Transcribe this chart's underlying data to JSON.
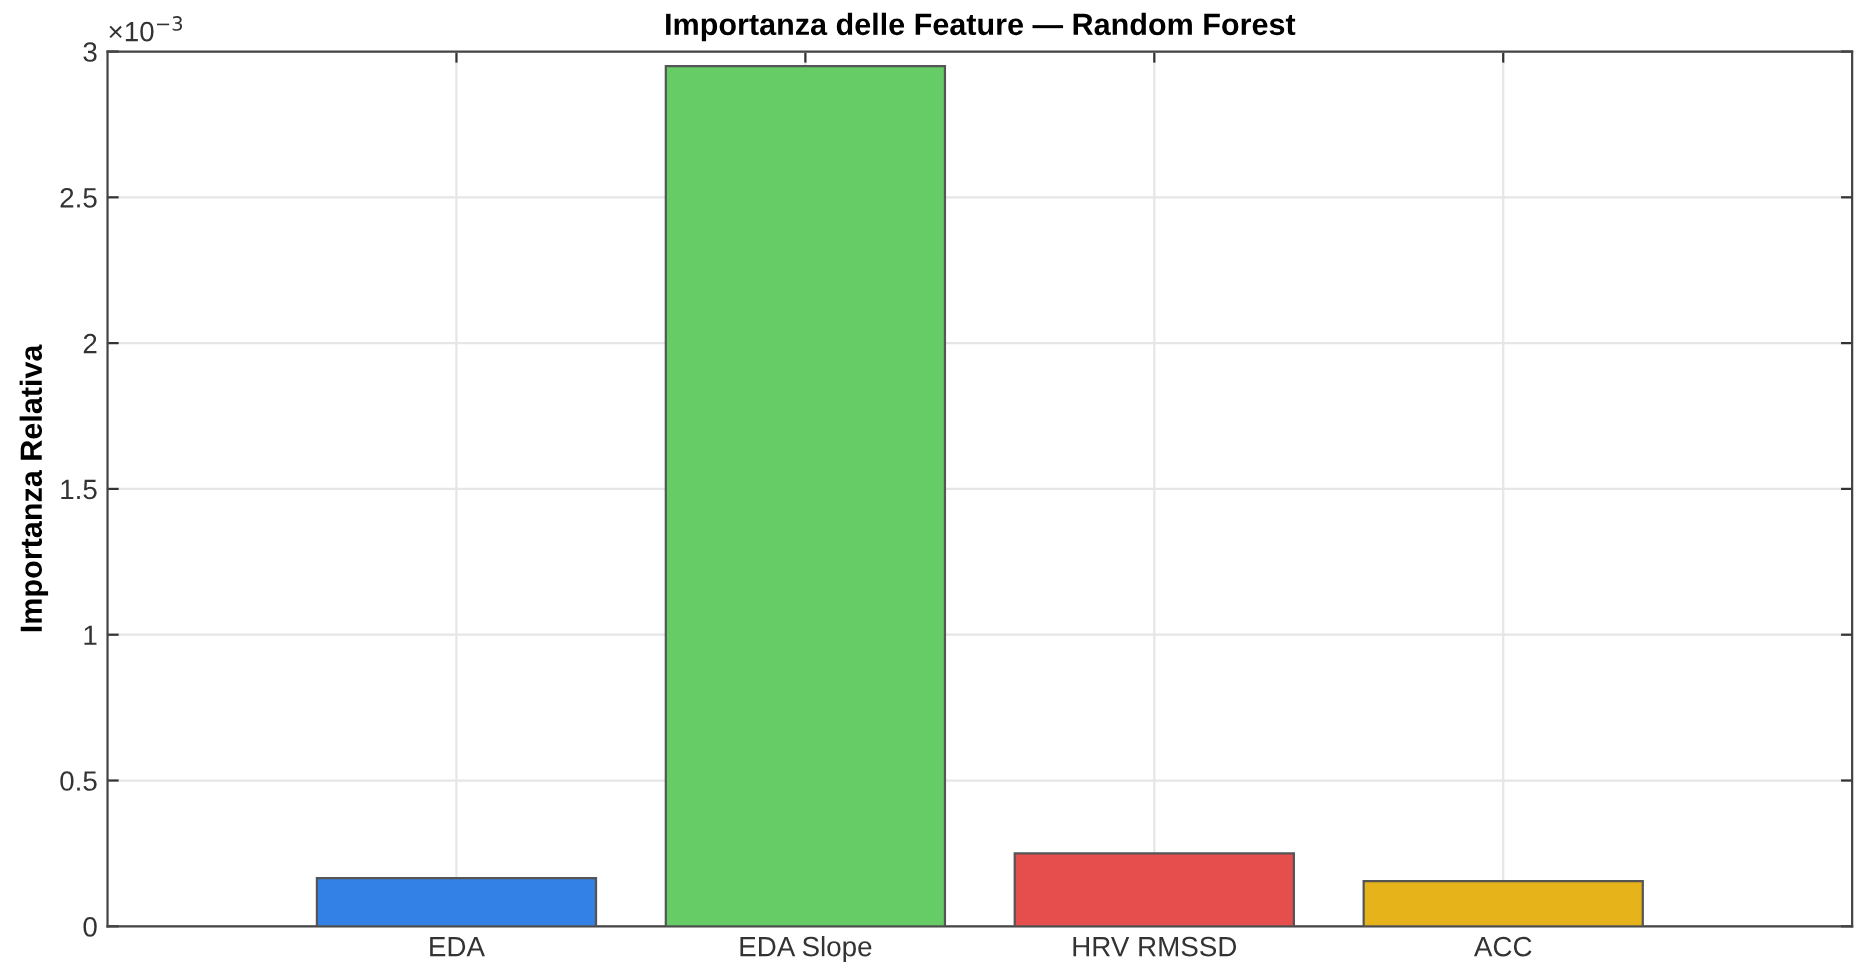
{
  "chart_data": {
    "type": "bar",
    "title": "Importanza delle Feature — Random Forest",
    "ylabel": "Importanza Relativa",
    "categories": [
      "EDA",
      "EDA Slope",
      "HRV RMSSD",
      "ACC"
    ],
    "values": [
      0.165,
      2.95,
      0.25,
      0.155
    ],
    "colors": [
      "#3380e6",
      "#66cc66",
      "#e64d4d",
      "#e6b31a"
    ],
    "ylim": [
      0,
      3
    ],
    "yticks": [
      0,
      0.5,
      1,
      1.5,
      2,
      2.5,
      3
    ],
    "annotations": [
      "×10$^{−3}$"
    ],
    "grid": true
  }
}
